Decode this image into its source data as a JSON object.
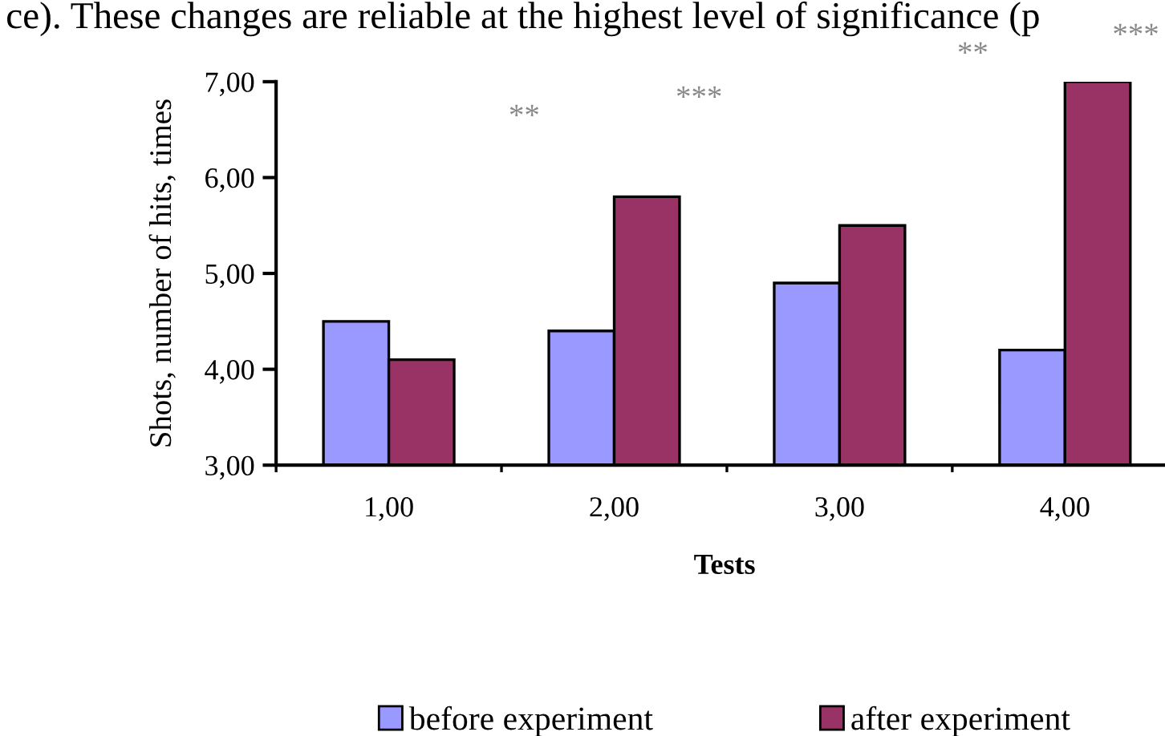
{
  "chart_data": {
    "type": "bar",
    "categories": [
      "1,00",
      "2,00",
      "3,00",
      "4,00"
    ],
    "series": [
      {
        "name": "before experiment",
        "color": "#9999ff",
        "values": [
          4.5,
          4.4,
          4.9,
          4.2
        ]
      },
      {
        "name": "after experiment",
        "color": "#993366",
        "values": [
          4.1,
          5.8,
          5.5,
          7.0
        ]
      }
    ],
    "xlabel": "Tests",
    "ylabel": "Shots, number of hits, times",
    "ylim": [
      3,
      7
    ],
    "yticks": [
      {
        "value": 3,
        "label": "3,00"
      },
      {
        "value": 4,
        "label": "4,00"
      },
      {
        "value": 5,
        "label": "5,00"
      },
      {
        "value": 6,
        "label": "6,00"
      },
      {
        "value": 7,
        "label": "7,00"
      }
    ],
    "grid": false,
    "legend": "bottom",
    "annotations": [
      "ce). These changes are reliable at the highest level of significance (p",
      "**",
      "***",
      "**",
      "***"
    ]
  }
}
